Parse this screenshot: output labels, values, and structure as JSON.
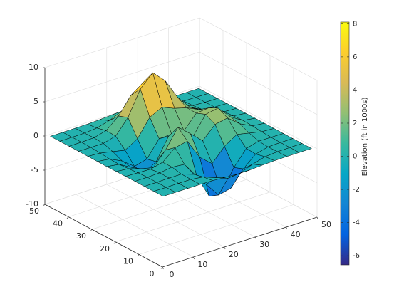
{
  "chart_data": {
    "type": "surface",
    "x": [
      1,
      5,
      9,
      13,
      17,
      21,
      25,
      29,
      33,
      37,
      41,
      45,
      49
    ],
    "y": [
      1,
      5,
      9,
      13,
      17,
      21,
      25,
      29,
      33,
      37,
      41,
      45,
      49
    ],
    "z": [
      [
        0,
        0,
        0,
        0,
        -0.03,
        -0.14,
        -0.24,
        -0.22,
        -0.11,
        -0.03,
        0,
        0,
        0
      ],
      [
        0,
        0,
        0.01,
        0,
        -0.23,
        -0.92,
        -1.57,
        -1.41,
        -0.69,
        -0.18,
        -0.03,
        0,
        0
      ],
      [
        0,
        0.01,
        0.05,
        0.04,
        -0.59,
        -2.64,
        -4.76,
        -4.35,
        -2.1,
        -0.53,
        -0.06,
        0,
        0
      ],
      [
        0,
        0.01,
        0.08,
        0.33,
        0.15,
        -2.19,
        -5.68,
        -5.76,
        -2.64,
        -0.44,
        0.04,
        0.03,
        0
      ],
      [
        -0.01,
        -0.06,
        -0.13,
        0.3,
        1.86,
        2.23,
        -0.72,
        -2.22,
        -0.27,
        0.88,
        0.5,
        0.11,
        0.01
      ],
      [
        -0.03,
        -0.2,
        -0.8,
        -1.21,
        0.8,
        3.55,
        2,
        0.39,
        2.2,
        2.56,
        1.12,
        0.24,
        0.03
      ],
      [
        -0.04,
        -0.3,
        -1.33,
        -2.77,
        -1.65,
        1.48,
        0.98,
        0.38,
        2.94,
        3.27,
        1.41,
        0.3,
        0.03
      ],
      [
        -0.03,
        -0.25,
        -1.12,
        -2.49,
        -2,
        0.39,
        0.46,
        0.38,
        2.38,
        2.56,
        1.09,
        0.23,
        0.03
      ],
      [
        -0.01,
        -0.11,
        -0.48,
        -0.86,
        0.23,
        2.79,
        3.69,
        2.93,
        2.43,
        1.58,
        0.58,
        0.11,
        0.01
      ],
      [
        0,
        -0.02,
        -0.01,
        0.48,
        2.61,
        6.2,
        8,
        6.25,
        3.25,
        1.19,
        0.29,
        0.05,
        0
      ],
      [
        0,
        0.01,
        0.08,
        0.55,
        2.1,
        4.56,
        5.86,
        4.57,
        2.21,
        0.68,
        0.13,
        0.02,
        0
      ],
      [
        0,
        0,
        0.03,
        0.19,
        0.69,
        1.47,
        1.89,
        1.47,
        0.7,
        0.21,
        0.04,
        0,
        0
      ],
      [
        0,
        0,
        0.01,
        0.03,
        0.11,
        0.23,
        0.3,
        0.23,
        0.11,
        0.03,
        0.01,
        0,
        0
      ]
    ],
    "xlim": [
      0,
      50
    ],
    "ylim": [
      0,
      50
    ],
    "zlim": [
      -10,
      10
    ],
    "xticks": [
      0,
      10,
      20,
      30,
      40,
      50
    ],
    "yticks": [
      0,
      10,
      20,
      30,
      40,
      50
    ],
    "zticks": [
      -10,
      -5,
      0,
      5,
      10
    ],
    "grid": true,
    "edge_color": "#000000",
    "colorbar": {
      "label": "Elevation (ft in 1000s)",
      "lim": [
        -6.55,
        8.1
      ],
      "ticks": [
        -6,
        -4,
        -2,
        0,
        2,
        4,
        6,
        8
      ],
      "colormap": [
        "#352a87",
        "#0363e1",
        "#1485d4",
        "#06a7c6",
        "#38b99e",
        "#92bf73",
        "#d9ba56",
        "#fcce2e",
        "#f9fb0e"
      ]
    }
  }
}
